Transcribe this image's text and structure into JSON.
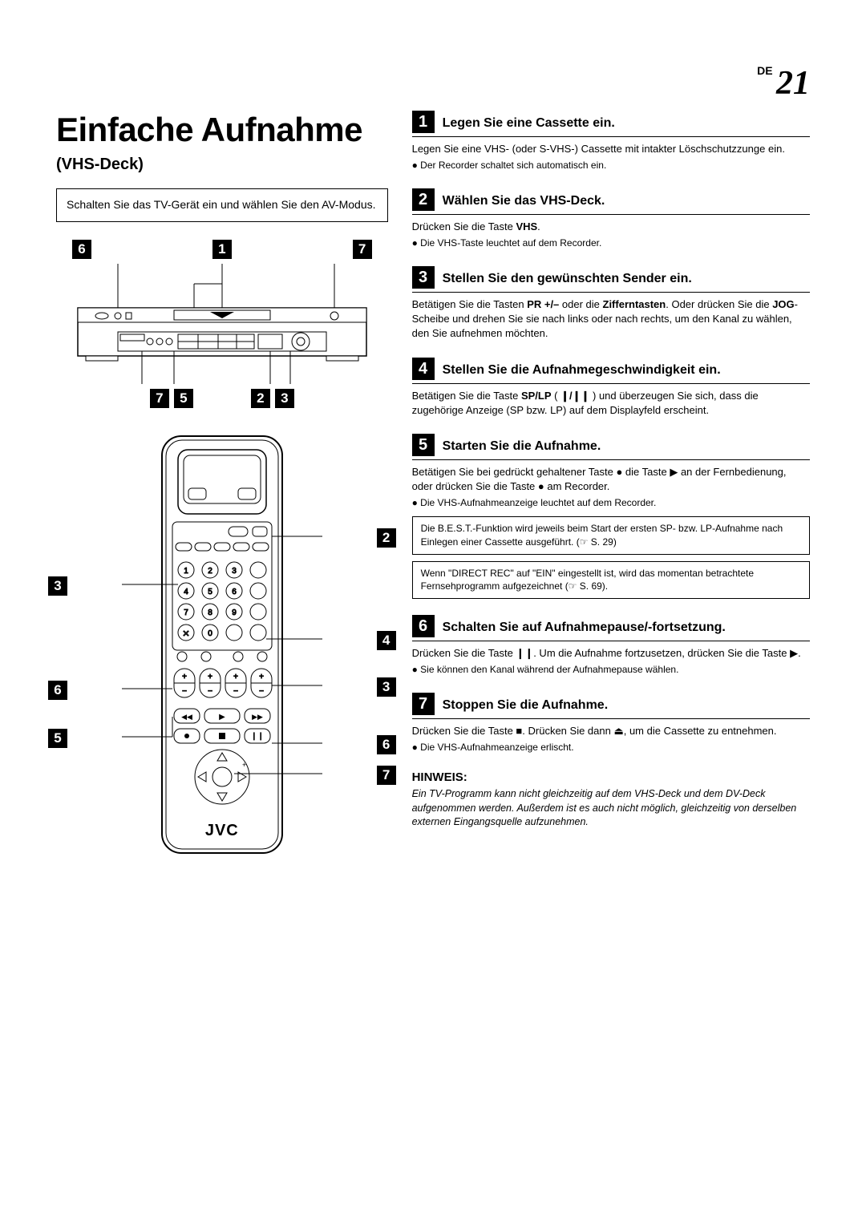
{
  "page": {
    "lang": "DE",
    "number": "21"
  },
  "title": "Einfache Aufnahme",
  "subtitle": "(VHS-Deck)",
  "intro": "Schalten Sie das TV-Gerät ein und wählen Sie den AV-Modus.",
  "device_callouts_top": [
    "6",
    "1",
    "7"
  ],
  "device_callouts_bottom": [
    "7",
    "5",
    "2",
    "3"
  ],
  "remote_callouts_right": [
    "2",
    "4",
    "3",
    "6",
    "7"
  ],
  "remote_callouts_left": [
    "3",
    "6",
    "5"
  ],
  "brand": "JVC",
  "steps": [
    {
      "num": "1",
      "title": "Legen Sie eine Cassette ein.",
      "body": "Legen Sie eine VHS- (oder S-VHS-) Cassette mit intakter Löschschutzzunge ein.",
      "bullets": [
        "● Der Recorder schaltet sich automatisch ein."
      ]
    },
    {
      "num": "2",
      "title": "Wählen Sie das VHS-Deck.",
      "body_html": "Drücken Sie die Taste <b>VHS</b>.",
      "bullets": [
        "● Die VHS-Taste leuchtet auf dem Recorder."
      ]
    },
    {
      "num": "3",
      "title": "Stellen Sie den gewünschten Sender ein.",
      "body_html": "Betätigen Sie die Tasten <b>PR +/–</b> oder die <b>Zifferntasten</b>. Oder drücken Sie die <b>JOG</b>-Scheibe und drehen Sie sie nach links oder nach rechts, um den Kanal zu wählen, den Sie aufnehmen möchten."
    },
    {
      "num": "4",
      "title": "Stellen Sie die Aufnahmegeschwindigkeit ein.",
      "body_html": "Betätigen Sie die Taste <b>SP/LP</b> ( <b>❙/❙❙</b> ) und überzeugen Sie sich, dass die zugehörige Anzeige (SP bzw. LP) auf dem Displayfeld erscheint."
    },
    {
      "num": "5",
      "title": "Starten Sie die Aufnahme.",
      "body_html": "Betätigen Sie bei gedrückt gehaltener Taste ● die Taste ▶ an der Fernbedienung, oder drücken Sie die Taste ● am Recorder.",
      "bullets": [
        "● Die VHS-Aufnahmeanzeige leuchtet auf dem Recorder."
      ],
      "notes": [
        "Die B.E.S.T.-Funktion wird jeweils beim Start der ersten SP- bzw. LP-Aufnahme nach Einlegen einer Cassette ausgeführt. (☞ S. 29)",
        "Wenn \"DIRECT REC\" auf \"EIN\" eingestellt ist, wird das momentan betrachtete Fernsehprogramm aufgezeichnet (☞ S. 69)."
      ]
    },
    {
      "num": "6",
      "title": "Schalten Sie auf Aufnahmepause/-fortsetzung.",
      "body_html": "Drücken Sie die Taste ❙❙. Um die Aufnahme fortzusetzen, drücken Sie die Taste ▶.",
      "bullets": [
        "● Sie können den Kanal während der Aufnahmepause wählen."
      ]
    },
    {
      "num": "7",
      "title": "Stoppen Sie die Aufnahme.",
      "body_html": "Drücken Sie die Taste ■. Drücken Sie dann ⏏, um die Cassette zu entnehmen.",
      "bullets": [
        "● Die VHS-Aufnahmeanzeige erlischt."
      ]
    }
  ],
  "hinweis": {
    "heading": "HINWEIS:",
    "body": "Ein TV-Programm kann nicht gleichzeitig auf dem VHS-Deck und dem DV-Deck aufgenommen werden. Außerdem ist es auch nicht möglich, gleichzeitig von derselben externen Eingangsquelle aufzunehmen."
  },
  "colors": {
    "text": "#000000",
    "bg": "#ffffff"
  }
}
